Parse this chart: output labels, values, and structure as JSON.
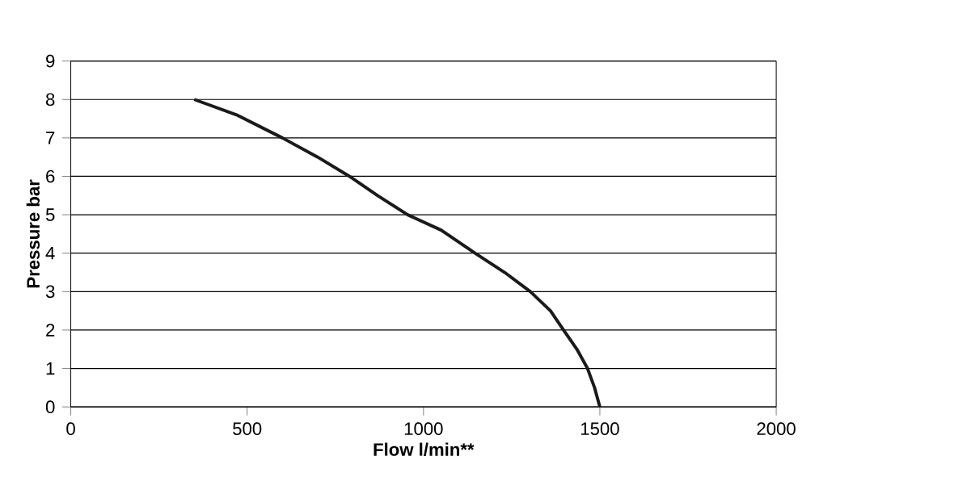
{
  "chart_data": {
    "type": "line",
    "xlabel": "Flow l/min**",
    "ylabel": "Pressure bar",
    "x": [
      350,
      470,
      600,
      700,
      790,
      870,
      955,
      1050,
      1146,
      1230,
      1303,
      1360,
      1397,
      1435,
      1465,
      1485,
      1500
    ],
    "series": [
      {
        "color": "#1a1a1a",
        "values": [
          8,
          7.6,
          7,
          6.5,
          6,
          5.5,
          5,
          4.6,
          4,
          3.5,
          3,
          2.5,
          2,
          1.5,
          1,
          0.5,
          0
        ]
      }
    ],
    "xlim": [
      0,
      2000
    ],
    "ylim": [
      0,
      9
    ],
    "xticks": [
      0,
      500,
      1000,
      1500,
      2000
    ],
    "yticks": [
      0,
      1,
      2,
      3,
      4,
      5,
      6,
      7,
      8,
      9
    ],
    "grid": "y",
    "marker": "none",
    "line_style": "solid"
  }
}
